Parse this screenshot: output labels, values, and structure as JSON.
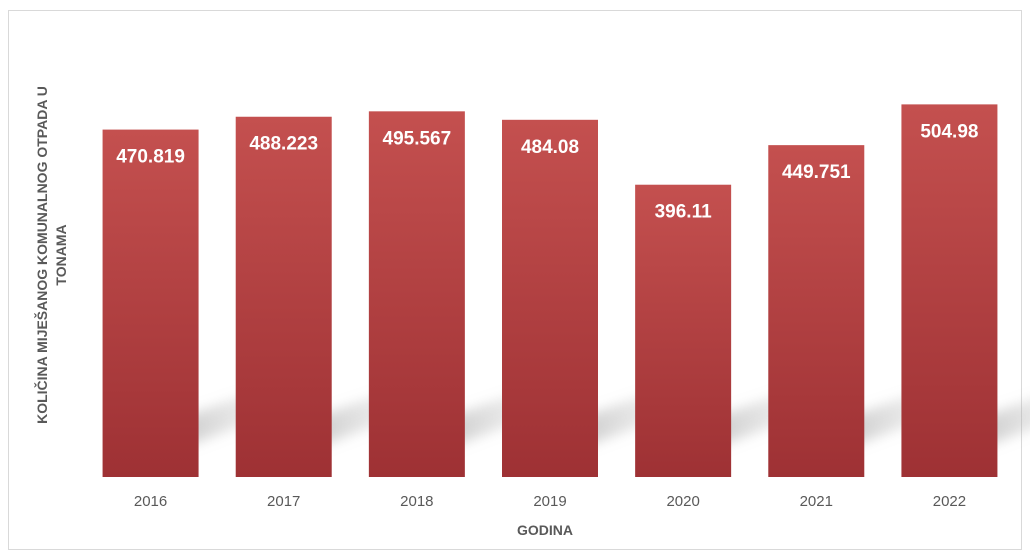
{
  "chart_data": {
    "type": "bar",
    "categories": [
      "2016",
      "2017",
      "2018",
      "2019",
      "2020",
      "2021",
      "2022"
    ],
    "values": [
      470.819,
      488.223,
      495.567,
      484.08,
      396.11,
      449.751,
      504.98
    ],
    "data_labels": [
      "470.819",
      "488.223",
      "495.567",
      "484.08",
      "396.11",
      "449.751",
      "504.98"
    ],
    "title": "",
    "xlabel": "GODINA",
    "ylabel_lines": [
      "KOLIČINA MIJEŠANOG KOMUNALNOG OTPADA U",
      "TONAMA"
    ],
    "ylim": [
      0,
      520
    ],
    "grid": false,
    "legend": "none",
    "colors": {
      "bar_top": "#c4504f",
      "bar_bottom": "#9e3134",
      "label": "#ffffff",
      "axis_text": "#595959"
    }
  }
}
